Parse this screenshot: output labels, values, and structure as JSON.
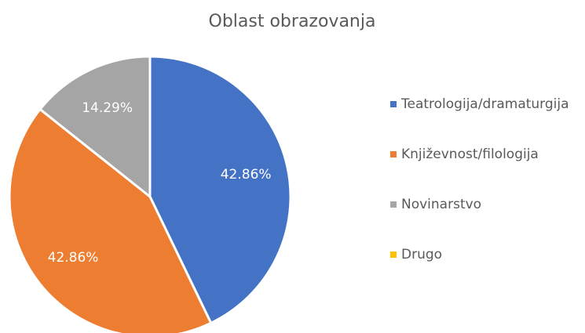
{
  "chart_data": {
    "type": "pie",
    "title": "Oblast obrazovanja",
    "categories": [
      "Teatrologija/dramaturgija",
      "Književnost/filologija",
      "Novinarstvo",
      "Drugo"
    ],
    "values": [
      42.86,
      42.86,
      14.29,
      0
    ],
    "value_labels": [
      "42.86%",
      "42.86%",
      "14.29%",
      null
    ],
    "colors": [
      "#4472c4",
      "#ed7d31",
      "#a5a5a5",
      "#ffc000"
    ],
    "legend": "right"
  }
}
